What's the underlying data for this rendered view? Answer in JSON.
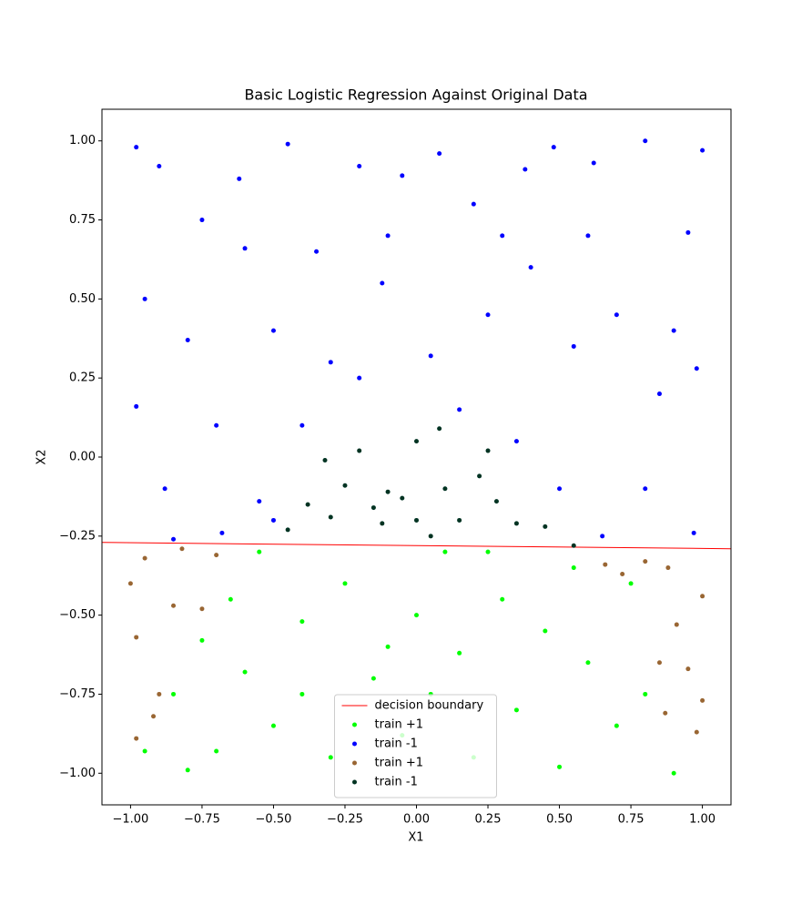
{
  "chart_data": {
    "type": "scatter",
    "title": "Basic Logistic Regression Against Original Data",
    "x_label": "X1",
    "y_label": "X2",
    "xlim": [
      -1.1,
      1.1
    ],
    "ylim": [
      -1.1,
      1.1
    ],
    "xticks": [
      {
        "value": -1,
        "label": "−1.00"
      },
      {
        "value": -0.75,
        "label": "−0.75"
      },
      {
        "value": -0.5,
        "label": "−0.50"
      },
      {
        "value": -0.25,
        "label": "−0.25"
      },
      {
        "value": 0,
        "label": "0.00"
      },
      {
        "value": 0.25,
        "label": "0.25"
      },
      {
        "value": 0.5,
        "label": "0.50"
      },
      {
        "value": 0.75,
        "label": "0.75"
      },
      {
        "value": 1,
        "label": "1.00"
      }
    ],
    "yticks": [
      {
        "value": -1,
        "label": "−1.00"
      },
      {
        "value": -0.75,
        "label": "−0.75"
      },
      {
        "value": -0.5,
        "label": "−0.50"
      },
      {
        "value": -0.25,
        "label": "−0.25"
      },
      {
        "value": 0,
        "label": "0.00"
      },
      {
        "value": 0.25,
        "label": "0.25"
      },
      {
        "value": 0.5,
        "label": "0.50"
      },
      {
        "value": 0.75,
        "label": "0.75"
      },
      {
        "value": 1,
        "label": "1.00"
      }
    ],
    "legend": "lower center",
    "series": [
      {
        "name": "decision boundary",
        "type": "line",
        "color": "#ff0000",
        "x": [
          -1.1,
          1.1
        ],
        "values": [
          -0.27,
          -0.29
        ]
      },
      {
        "name": "train +1",
        "color": "#00ff00",
        "x": [
          -0.85,
          -0.75,
          -0.7,
          -0.6,
          -0.55,
          -0.5,
          -0.4,
          -0.3,
          -0.25,
          -0.15,
          -0.05,
          0.0,
          0.1,
          0.15,
          0.2,
          0.3,
          0.35,
          0.45,
          0.5,
          0.6,
          0.7,
          0.75,
          0.8,
          -0.65,
          -0.4,
          0.05,
          0.55,
          -0.1,
          0.9,
          -0.95,
          0.25,
          -0.8
        ],
        "values": [
          -0.75,
          -0.58,
          -0.93,
          -0.68,
          -0.3,
          -0.85,
          -0.52,
          -0.95,
          -0.4,
          -0.7,
          -0.88,
          -0.5,
          -0.3,
          -0.62,
          -0.95,
          -0.45,
          -0.8,
          -0.55,
          -0.98,
          -0.65,
          -0.85,
          -0.4,
          -0.75,
          -0.45,
          -0.75,
          -0.75,
          -0.35,
          -0.6,
          -1.0,
          -0.93,
          -0.3,
          -0.99
        ]
      },
      {
        "name": "train -1",
        "color": "#0000ff",
        "x": [
          -0.98,
          -0.9,
          -0.75,
          -0.62,
          -0.45,
          -0.35,
          -0.2,
          -0.05,
          0.08,
          0.2,
          0.38,
          0.48,
          0.62,
          0.8,
          0.95,
          1.0,
          -0.95,
          -0.8,
          -0.6,
          -0.5,
          -0.3,
          -0.12,
          0.05,
          0.25,
          0.4,
          0.55,
          0.7,
          0.85,
          0.98,
          -0.98,
          -0.88,
          -0.7,
          -0.55,
          -0.4,
          -0.5,
          0.35,
          0.5,
          0.65,
          0.8,
          0.97,
          -0.85,
          -0.68,
          0.15,
          -0.2,
          0.9,
          -0.1,
          0.3,
          0.6
        ],
        "values": [
          0.98,
          0.92,
          0.75,
          0.88,
          0.99,
          0.65,
          0.92,
          0.89,
          0.96,
          0.8,
          0.91,
          0.98,
          0.93,
          1.0,
          0.71,
          0.97,
          0.5,
          0.37,
          0.66,
          0.4,
          0.3,
          0.55,
          0.32,
          0.45,
          0.6,
          0.35,
          0.45,
          0.2,
          0.28,
          0.16,
          -0.1,
          0.1,
          -0.14,
          0.1,
          -0.2,
          0.05,
          -0.1,
          -0.25,
          -0.1,
          -0.24,
          -0.26,
          -0.24,
          0.15,
          0.25,
          0.4,
          0.7,
          0.7,
          0.7
        ]
      },
      {
        "name": "train +1",
        "color": "#996633",
        "x": [
          -1.0,
          -0.98,
          -0.95,
          -0.92,
          -0.9,
          -0.85,
          -0.82,
          -0.7,
          -0.75,
          -0.98,
          0.66,
          0.72,
          0.8,
          0.88,
          0.91,
          0.95,
          0.87,
          0.98,
          1.0,
          0.85,
          1.0
        ],
        "values": [
          -0.4,
          -0.57,
          -0.32,
          -0.82,
          -0.75,
          -0.47,
          -0.29,
          -0.31,
          -0.48,
          -0.89,
          -0.34,
          -0.37,
          -0.33,
          -0.35,
          -0.53,
          -0.67,
          -0.81,
          -0.87,
          -0.77,
          -0.65,
          -0.44
        ]
      },
      {
        "name": "train -1",
        "color": "#003322",
        "x": [
          -0.45,
          -0.38,
          -0.3,
          -0.25,
          -0.2,
          -0.15,
          -0.1,
          -0.05,
          0.0,
          0.05,
          0.08,
          0.1,
          0.15,
          0.22,
          0.28,
          0.35,
          0.45,
          0.55,
          -0.32,
          0.0,
          -0.12,
          0.25
        ],
        "values": [
          -0.23,
          -0.15,
          -0.19,
          -0.09,
          0.02,
          -0.16,
          -0.11,
          -0.13,
          -0.2,
          -0.25,
          0.09,
          -0.1,
          -0.2,
          -0.06,
          -0.14,
          -0.21,
          -0.22,
          -0.28,
          -0.01,
          0.05,
          -0.21,
          0.02
        ]
      }
    ]
  }
}
